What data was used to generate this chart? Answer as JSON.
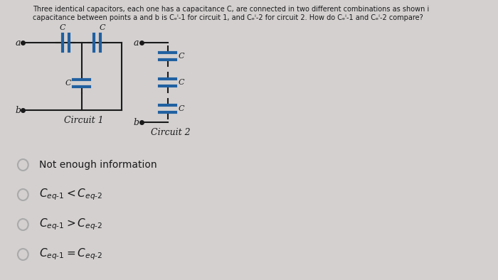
{
  "bg_color": "#d4d0d0",
  "title_line1": "Three identical capacitors, each one has a capacitance C, are connected in two different combinations as shown i",
  "title_line2": "capacitance between points a and b is Cₑⁱ-1 for circuit 1, and Cₑⁱ-2 for circuit 2. How do Cₑⁱ-1 and Cₑⁱ-2 compare?",
  "circuit1_label": "Circuit 1",
  "circuit2_label": "Circuit 2",
  "option0_text": "Not enough information",
  "option1_text": "$C_{eq\\text{-}1} < C_{eq\\text{-}2}$",
  "option2_text": "$C_{eq\\text{-}1} > C_{eq\\text{-}2}$",
  "option3_text": "$C_{eq\\text{-}1} = C_{eq\\text{-}2}$",
  "cap_color": "#2060a0",
  "line_color": "#1a1a1a",
  "text_color": "#1a1a1a",
  "font_size_title": 7.0,
  "font_size_circuit": 9,
  "font_size_options": 10,
  "font_size_options_math": 11,
  "circle_color": "#aaaaaa"
}
